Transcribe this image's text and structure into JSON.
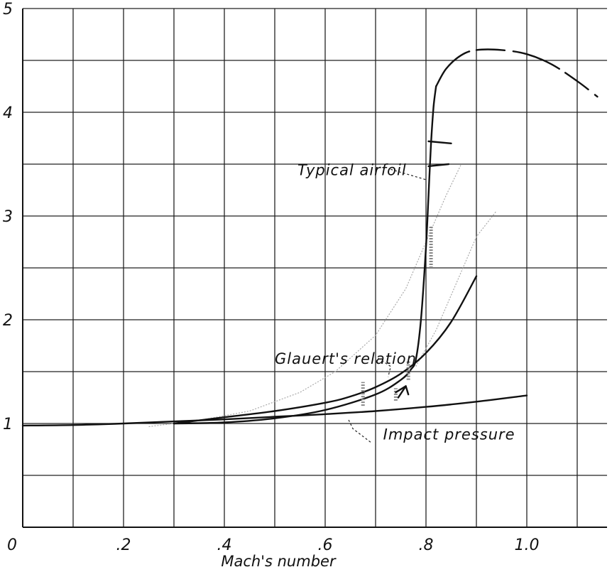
{
  "chart_data": {
    "type": "line",
    "title": "",
    "xlabel": "Mach's number",
    "ylabel": "",
    "xlim": [
      0,
      1.12
    ],
    "ylim": [
      0,
      5
    ],
    "grid": true,
    "x_ticks": [
      {
        "value": 0,
        "label": "0"
      },
      {
        "value": 0.2,
        "label": ".2"
      },
      {
        "value": 0.4,
        "label": ".4"
      },
      {
        "value": 0.6,
        "label": ".6"
      },
      {
        "value": 0.8,
        "label": ".8"
      },
      {
        "value": 1.0,
        "label": "1.0"
      }
    ],
    "y_ticks": [
      {
        "value": 0,
        "label": ""
      },
      {
        "value": 1,
        "label": "1"
      },
      {
        "value": 2,
        "label": "2"
      },
      {
        "value": 3,
        "label": "3"
      },
      {
        "value": 4,
        "label": "4"
      },
      {
        "value": 5,
        "label": "5"
      }
    ],
    "series": [
      {
        "name": "Impact pressure",
        "style": "solid",
        "x": [
          0,
          0.1,
          0.2,
          0.3,
          0.4,
          0.5,
          0.6,
          0.7,
          0.8,
          0.9,
          1.0
        ],
        "y": [
          0.98,
          0.985,
          1.0,
          1.02,
          1.04,
          1.065,
          1.09,
          1.12,
          1.16,
          1.21,
          1.27
        ]
      },
      {
        "name": "Glauert's relation",
        "style": "solid",
        "x": [
          0.3,
          0.4,
          0.5,
          0.6,
          0.65,
          0.7,
          0.75,
          0.8,
          0.85,
          0.9
        ],
        "y": [
          1.0,
          1.06,
          1.12,
          1.2,
          1.26,
          1.35,
          1.48,
          1.68,
          1.98,
          2.42
        ]
      },
      {
        "name": "Typical airfoil",
        "style": "solid",
        "x": [
          0.3,
          0.4,
          0.5,
          0.6,
          0.7,
          0.75,
          0.77,
          0.78,
          0.79,
          0.8,
          0.805,
          0.81,
          0.815,
          0.82
        ],
        "y": [
          1.0,
          1.01,
          1.05,
          1.13,
          1.28,
          1.42,
          1.52,
          1.62,
          2.0,
          2.7,
          3.2,
          3.7,
          4.05,
          4.25
        ]
      },
      {
        "name": "Typical airfoil (extrapolated)",
        "style": "dashed",
        "x": [
          0.82,
          0.84,
          0.87,
          0.9,
          0.95,
          1.0,
          1.05,
          1.1,
          1.14
        ],
        "y": [
          4.25,
          4.42,
          4.55,
          4.6,
          4.6,
          4.56,
          4.46,
          4.3,
          4.15
        ]
      }
    ],
    "annotations": [
      {
        "text": "Typical airfoil",
        "x": 0.545,
        "y": 3.45
      },
      {
        "text": "Glauert's relation",
        "x": 0.5,
        "y": 1.63
      },
      {
        "text": "Impact pressure",
        "x": 0.715,
        "y": 0.9
      }
    ]
  }
}
